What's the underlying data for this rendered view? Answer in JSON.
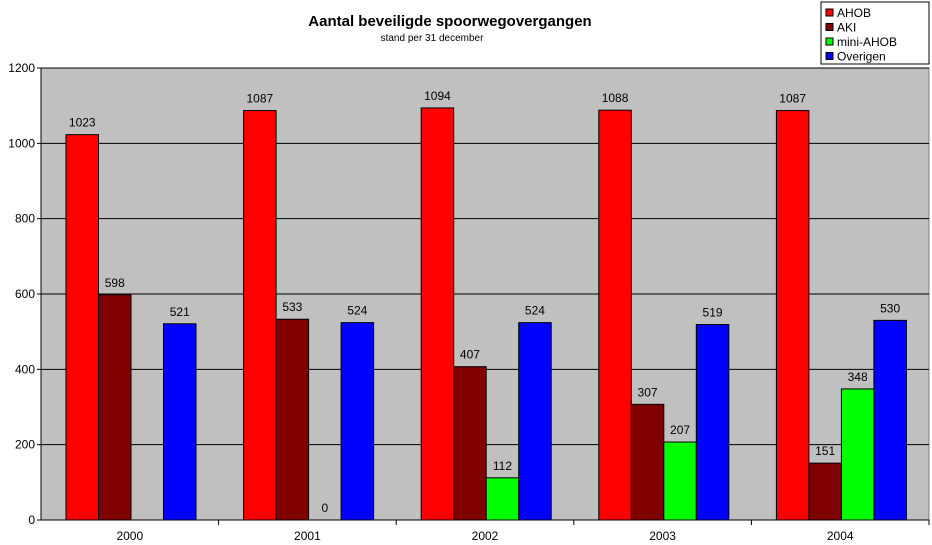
{
  "chart_data": {
    "type": "bar",
    "title": "Aantal beveiligde spoorwegovergangen",
    "subtitle": "stand per 31 december",
    "xlabel": "",
    "ylabel": "",
    "categories": [
      "2000",
      "2001",
      "2002",
      "2003",
      "2004"
    ],
    "ylim": [
      0,
      1200
    ],
    "yticks": [
      0,
      200,
      400,
      600,
      800,
      1000,
      1200
    ],
    "grid": true,
    "legend_position": "top-right",
    "series": [
      {
        "name": "AHOB",
        "color": "#ff0000",
        "values": [
          1023,
          1087,
          1094,
          1088,
          1087
        ]
      },
      {
        "name": "AKI",
        "color": "#800000",
        "values": [
          598,
          533,
          407,
          307,
          151
        ]
      },
      {
        "name": "mini-AHOB",
        "color": "#00ff00",
        "values": [
          null,
          0,
          112,
          207,
          348
        ]
      },
      {
        "name": "Overigen",
        "color": "#0000ff",
        "values": [
          521,
          524,
          524,
          519,
          530
        ]
      }
    ],
    "plot_background": "#c0c0c0"
  }
}
